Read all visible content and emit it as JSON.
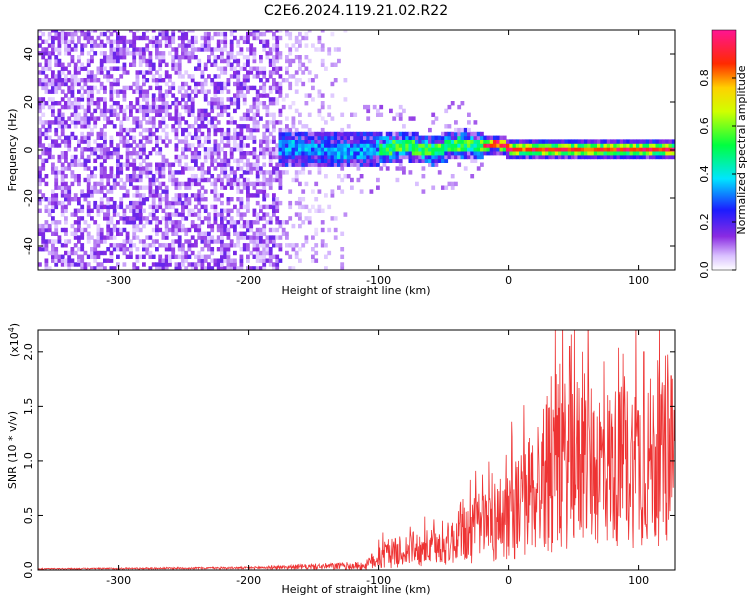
{
  "title": "C2E6.2024.119.21.02.R22",
  "chart_data": [
    {
      "type": "heatmap",
      "xlabel": "Height of straight line (km)",
      "ylabel": "Frequency (Hz)",
      "xlim": [
        -362,
        128
      ],
      "ylim": [
        -50,
        50
      ],
      "x_ticks": [
        -300,
        -200,
        -100,
        0,
        100
      ],
      "x_tick_labels": [
        "-300",
        "-200",
        "-100",
        "0",
        "100"
      ],
      "y_ticks": [
        -40,
        -20,
        0,
        20,
        40
      ],
      "y_tick_labels": [
        "-40",
        "-20",
        "0",
        "20",
        "40"
      ],
      "grid": false,
      "colorbar": {
        "label": "Normalized spectral amplitude",
        "range": [
          0,
          1
        ],
        "ticks": [
          0.0,
          0.2,
          0.4,
          0.6,
          0.8
        ],
        "tick_labels": [
          "0.0",
          "0.2",
          "0.4",
          "0.6",
          "0.8"
        ],
        "colormap": "rainbow (white-purple-blue-cyan-green-yellow-red-magenta)"
      },
      "regions": [
        {
          "x_range": [
            -362,
            -175
          ],
          "freq_range": [
            -50,
            50
          ],
          "amplitude": "low (0.05-0.2), noise"
        },
        {
          "x_range": [
            -175,
            -125
          ],
          "freq_range": [
            -50,
            50
          ],
          "amplitude": "very low (<0.1), sparse noise"
        },
        {
          "x_range": [
            -175,
            -100
          ],
          "freq_range": [
            -7,
            7
          ],
          "amplitude": "0.2-0.4"
        },
        {
          "x_range": [
            -100,
            -20
          ],
          "freq_range": [
            -5,
            5
          ],
          "amplitude": "0.4-0.6"
        },
        {
          "x_range": [
            -20,
            128
          ],
          "freq_range": [
            -2,
            2
          ],
          "amplitude": "0.8-1.0"
        }
      ],
      "centerline": [
        {
          "x": -170,
          "f": 0
        },
        {
          "x": -120,
          "f": -1
        },
        {
          "x": -80,
          "f": 1
        },
        {
          "x": -60,
          "f": -1
        },
        {
          "x": -40,
          "f": 2
        },
        {
          "x": -25,
          "f": 1
        },
        {
          "x": -10,
          "f": 2
        },
        {
          "x": 0,
          "f": 0
        },
        {
          "x": 128,
          "f": 0
        }
      ]
    },
    {
      "type": "line",
      "xlabel": "Height of straight line (km)",
      "ylabel": "SNR (10 * v/v)",
      "y_multiplier": "(x10",
      "y_multiplier_exp": "4",
      "y_multiplier_close": ")",
      "xlim": [
        -362,
        128
      ],
      "ylim": [
        0,
        2.2
      ],
      "x_ticks": [
        -300,
        -200,
        -100,
        0,
        100
      ],
      "x_tick_labels": [
        "-300",
        "-200",
        "-100",
        "0",
        "100"
      ],
      "y_ticks": [
        0.0,
        0.5,
        1.0,
        1.5,
        2.0
      ],
      "y_tick_labels": [
        "0.0",
        "0.5",
        "1.0",
        "1.5",
        "2.0"
      ],
      "grid": false,
      "line_color": "#ee3333",
      "envelope": [
        {
          "x": -362,
          "mean": 0.01,
          "amp": 0.005
        },
        {
          "x": -200,
          "mean": 0.02,
          "amp": 0.01
        },
        {
          "x": -110,
          "mean": 0.04,
          "amp": 0.04
        },
        {
          "x": -100,
          "mean": 0.12,
          "amp": 0.12
        },
        {
          "x": -80,
          "mean": 0.18,
          "amp": 0.15
        },
        {
          "x": -50,
          "mean": 0.22,
          "amp": 0.18
        },
        {
          "x": -30,
          "mean": 0.35,
          "amp": 0.3
        },
        {
          "x": -10,
          "mean": 0.45,
          "amp": 0.4
        },
        {
          "x": 10,
          "mean": 0.6,
          "amp": 0.5
        },
        {
          "x": 30,
          "mean": 0.9,
          "amp": 0.75
        },
        {
          "x": 50,
          "mean": 1.0,
          "amp": 0.8
        },
        {
          "x": 80,
          "mean": 0.95,
          "amp": 0.75
        },
        {
          "x": 110,
          "mean": 1.0,
          "amp": 0.8
        },
        {
          "x": 128,
          "mean": 0.95,
          "amp": 0.7
        }
      ],
      "peaks": [
        {
          "x": 36,
          "y": 2.2
        },
        {
          "x": 47,
          "y": 2.05
        },
        {
          "x": 57,
          "y": 2.0
        },
        {
          "x": 104,
          "y": 2.0
        },
        {
          "x": 125,
          "y": 1.78
        }
      ]
    }
  ]
}
